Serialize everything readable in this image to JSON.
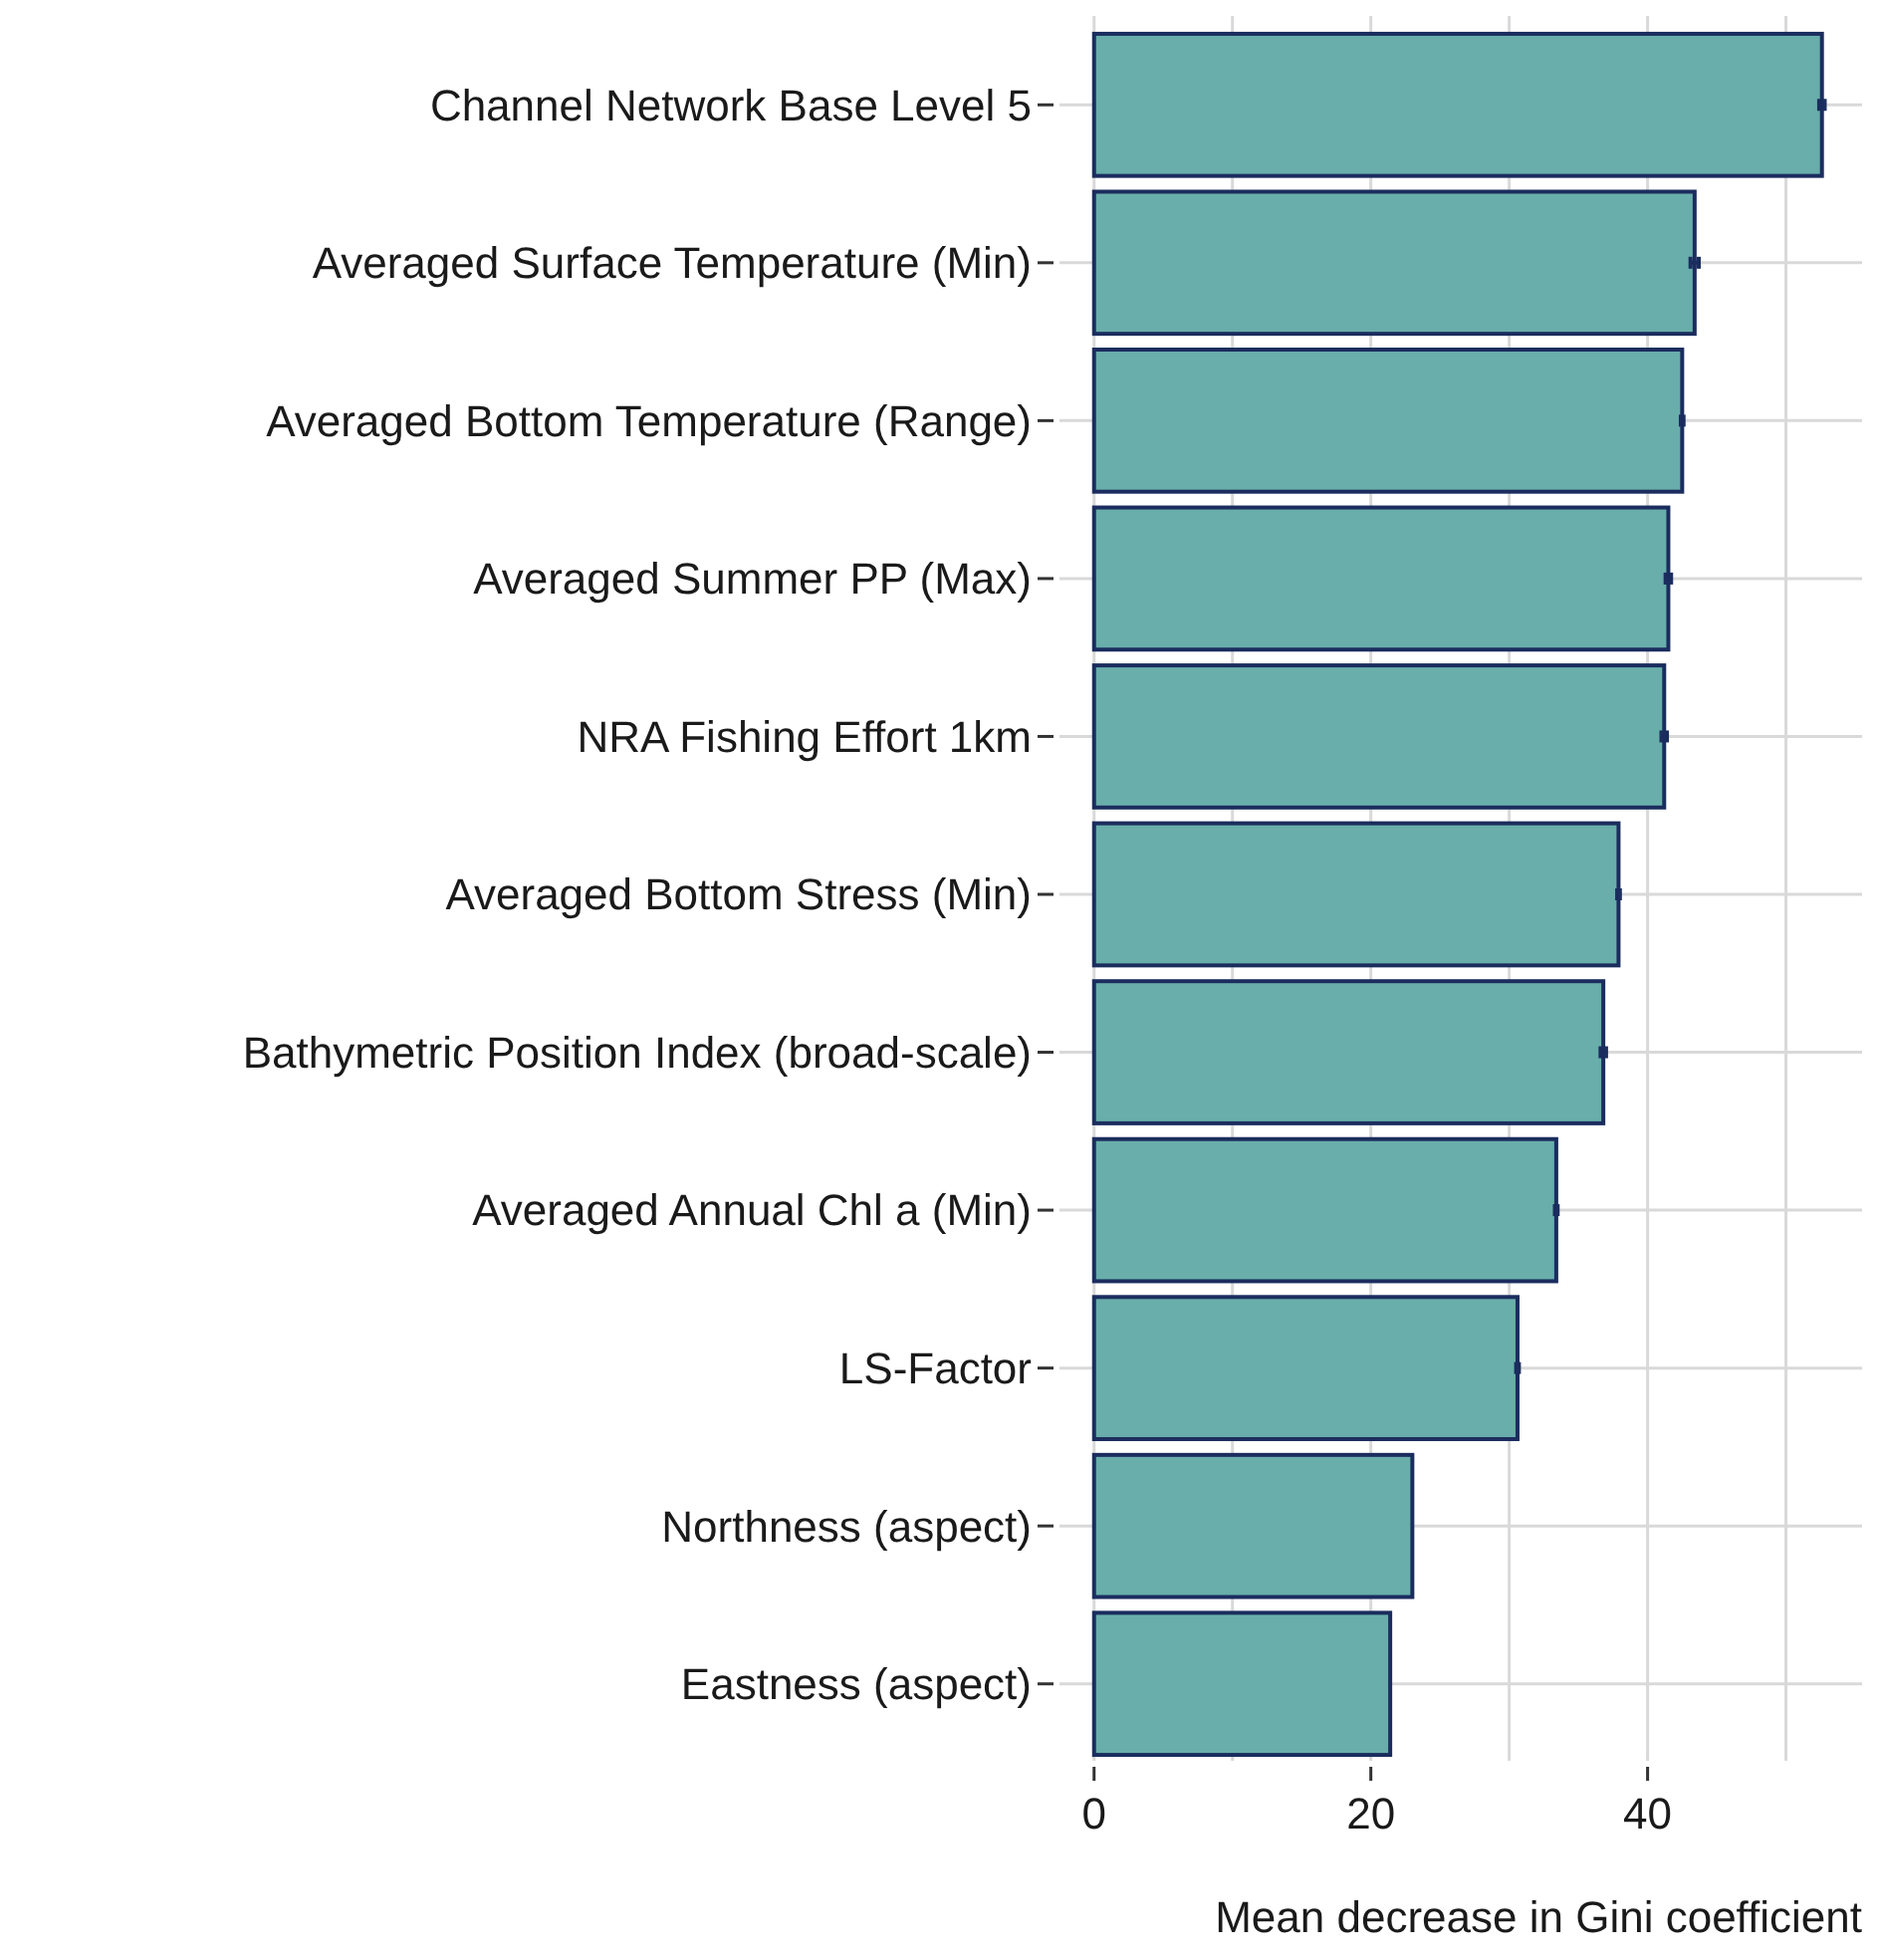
{
  "chart_data": {
    "type": "bar",
    "orientation": "horizontal",
    "xlabel": "Mean decrease in Gini coefficient",
    "categories": [
      "Channel Network Base Level 5",
      "Averaged Surface Temperature (Min)",
      "Averaged Bottom Temperature (Range)",
      "Averaged Summer PP (Max)",
      "NRA Fishing Effort 1km",
      "Averaged Bottom Stress (Min)",
      "Bathymetric Position Index (broad-scale)",
      "Averaged Annual Chl a (Min)",
      "LS-Factor",
      "Northness (aspect)",
      "Eastness (aspect)"
    ],
    "values": [
      52.6,
      43.4,
      42.5,
      41.5,
      41.2,
      37.9,
      36.8,
      33.4,
      30.6,
      23.0,
      21.4
    ],
    "errors": [
      0.2,
      0.3,
      0.1,
      0.2,
      0.2,
      0.1,
      0.2,
      0.1,
      0.1,
      null,
      null
    ],
    "color": "#69aeab",
    "xlim": [
      -2.5,
      55.5
    ],
    "xticks": [
      0,
      20,
      40
    ],
    "grid": true
  }
}
